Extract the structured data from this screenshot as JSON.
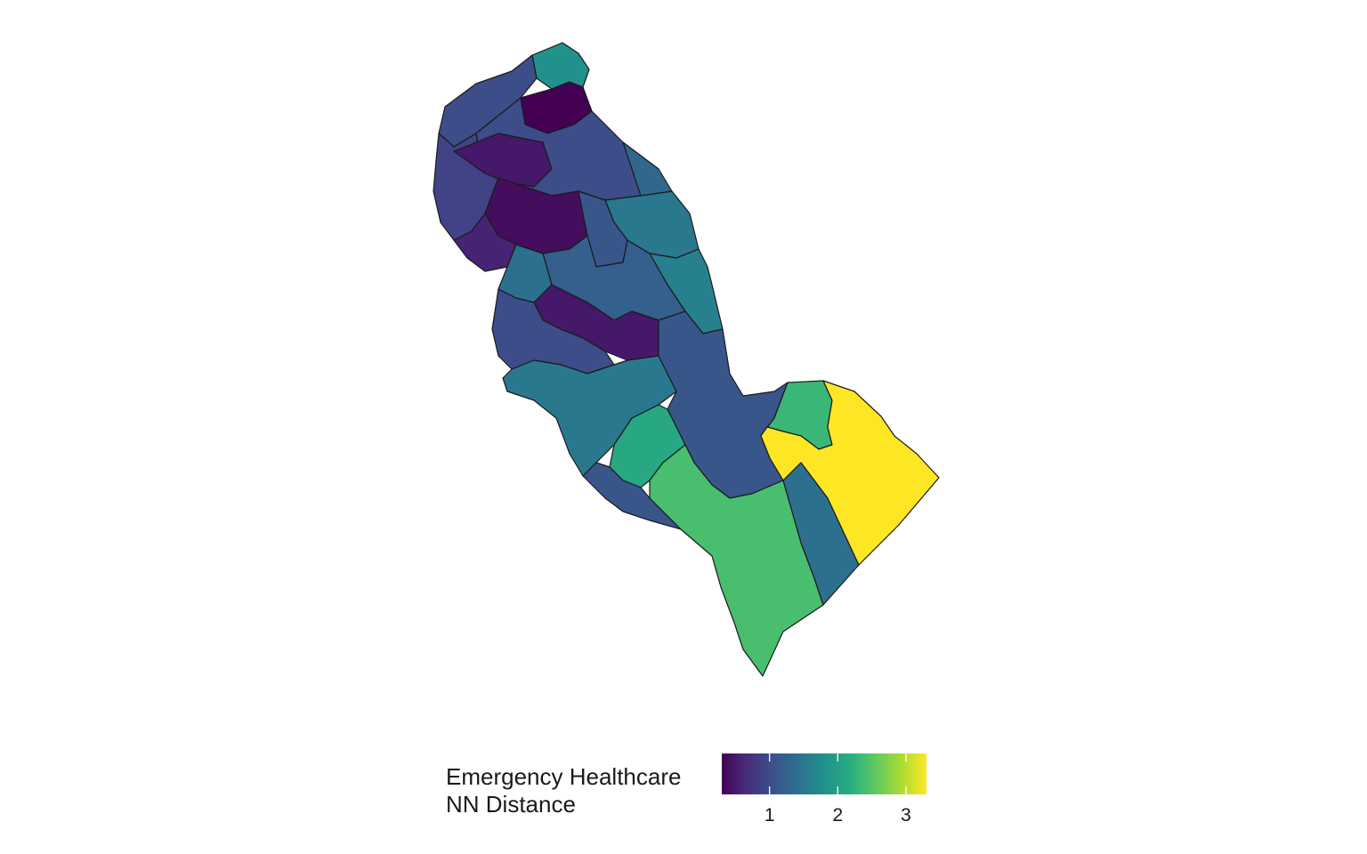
{
  "legend": {
    "title_line1": "Emergency Healthcare",
    "title_line2": "NN Distance",
    "min": 0.3,
    "max": 3.3,
    "ticks": [
      "1",
      "2",
      "3"
    ],
    "tick_values": [
      1,
      2,
      3
    ],
    "palette": "viridis"
  },
  "colors": {
    "c1": "#440154",
    "c2": "#472d7b",
    "c3": "#3b528b",
    "c4": "#2c728e",
    "c5": "#21918c",
    "c6": "#28ae80",
    "c7": "#5ec962",
    "c8": "#addc30",
    "c9": "#fde725",
    "border": "#1a1a1a"
  },
  "regions": [
    {
      "id": "north-cap",
      "value": 1.8
    },
    {
      "id": "north-west",
      "value": 1.0
    },
    {
      "id": "far-north-core",
      "value": 0.3
    },
    {
      "id": "north-mid",
      "value": 1.0
    },
    {
      "id": "west-edge",
      "value": 0.9
    },
    {
      "id": "central-urban-a",
      "value": 0.5
    },
    {
      "id": "central-urban-b",
      "value": 0.4
    },
    {
      "id": "central-urban-c",
      "value": 0.6
    },
    {
      "id": "east-a",
      "value": 1.3
    },
    {
      "id": "east-b",
      "value": 1.5
    },
    {
      "id": "east-c",
      "value": 1.1
    },
    {
      "id": "east-d",
      "value": 1.6
    },
    {
      "id": "mid-a",
      "value": 1.2
    },
    {
      "id": "mid-b",
      "value": 1.4
    },
    {
      "id": "mid-core",
      "value": 0.5
    },
    {
      "id": "southwest-a",
      "value": 1.0
    },
    {
      "id": "southwest-b",
      "value": 1.5
    },
    {
      "id": "south-central",
      "value": 1.1
    },
    {
      "id": "south-green-a",
      "value": 2.1
    },
    {
      "id": "south-band",
      "value": 1.1
    },
    {
      "id": "south-green-b",
      "value": 2.4
    },
    {
      "id": "southeast-band",
      "value": 1.4
    },
    {
      "id": "east-green",
      "value": 2.3
    },
    {
      "id": "east-yellow",
      "value": 3.3
    }
  ]
}
